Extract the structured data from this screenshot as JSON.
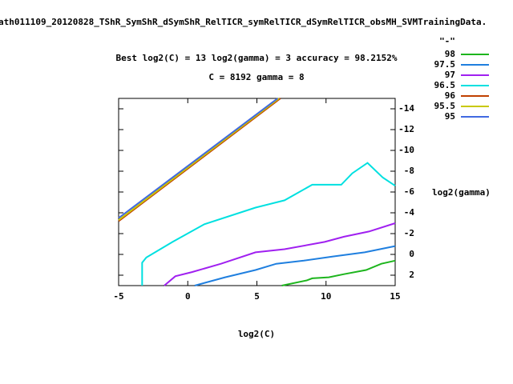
{
  "chart_data": {
    "type": "line",
    "title": "ath011109_20120828_TShR_SymShR_dSymShR_RelTICR_symRelTICR_dSymRelTICR_obsMH_SVMTrainingData.",
    "subtitle": [
      "Best log2(C) = 13  log2(gamma) = 3  accuracy = 98.2152%",
      "C = 8192  gamma = 8"
    ],
    "x_label": "log2(C)",
    "y_label": "log2(gamma)",
    "legend_title": "\"-\"",
    "xlim": [
      -5,
      15
    ],
    "xticks": [
      -5,
      0,
      5,
      10,
      15
    ],
    "ylim": [
      3,
      -15
    ],
    "yticks": [
      2,
      0,
      -2,
      -4,
      -6,
      -8,
      -10,
      -12,
      -14
    ],
    "series": [
      {
        "name": "98",
        "color": "#1db51d",
        "x": [
          6.8,
          8.6,
          9,
          10.2,
          11.3,
          12.9,
          14,
          15
        ],
        "values": [
          3,
          2.5,
          2.3,
          2.2,
          1.9,
          1.5,
          0.9,
          0.6
        ]
      },
      {
        "name": "97.5",
        "color": "#1f7fdf",
        "x": [
          0.5,
          2.7,
          4.9,
          6.4,
          8.4,
          10.5,
          12.8,
          15
        ],
        "values": [
          3,
          2.2,
          1.5,
          0.9,
          0.6,
          0.2,
          -0.2,
          -0.8
        ]
      },
      {
        "name": "97",
        "color": "#a020f0",
        "x": [
          -1.7,
          -0.9,
          0.3,
          2.4,
          4.9,
          7,
          9.9,
          11.3,
          13.1,
          15
        ],
        "values": [
          3,
          2.1,
          1.7,
          0.9,
          -0.2,
          -0.5,
          -1.2,
          -1.7,
          -2.2,
          -3
        ]
      },
      {
        "name": "96.5",
        "color": "#00e0e0",
        "x": [
          -3.3,
          -3.3,
          -3,
          -1.1,
          1.2,
          4.9,
          7,
          9,
          11.1,
          11.9,
          13,
          14.1,
          15
        ],
        "values": [
          3,
          0.8,
          0.3,
          -1.2,
          -2.9,
          -4.5,
          -5.2,
          -6.7,
          -6.7,
          -7.8,
          -8.8,
          -7.4,
          -6.6
        ]
      },
      {
        "name": "96",
        "color": "#c04000",
        "x": [
          -5,
          6.7
        ],
        "values": [
          -3.2,
          -15
        ]
      },
      {
        "name": "95.5",
        "color": "#c8c800",
        "x": [
          -5,
          6.6
        ],
        "values": [
          -3.3,
          -15
        ]
      },
      {
        "name": "95",
        "color": "#4169e1",
        "x": [
          -5,
          6.5
        ],
        "values": [
          -3.5,
          -15
        ]
      }
    ]
  }
}
